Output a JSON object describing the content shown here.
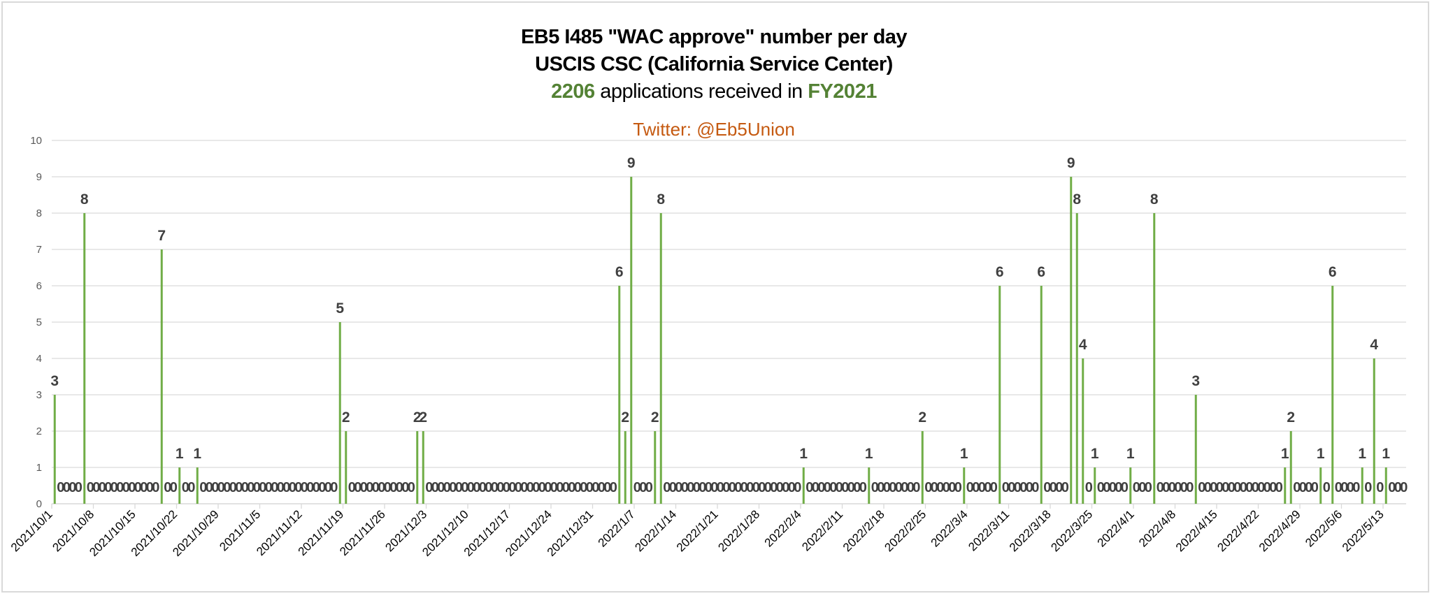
{
  "header": {
    "title": "EB5 I485 \"WAC approve\" number per day",
    "subtitle": "USCIS CSC (California Service Center)",
    "received_count": "2206",
    "received_text": " applications received in ",
    "fiscal_year": "FY2021",
    "credit": "Twitter: @Eb5Union"
  },
  "colors": {
    "bar": "#70ad47",
    "highlight_text": "#548235",
    "credit_text": "#c55a11",
    "label_text": "#404040",
    "gridline": "#d9d9d9"
  },
  "chart_data": {
    "type": "bar",
    "title": "EB5 I485 \"WAC approve\" number per day",
    "subtitle": "USCIS CSC (California Service Center) — 2206 applications received in FY2021",
    "annotation": "Twitter: @Eb5Union",
    "xlabel": "",
    "ylabel": "",
    "ylim": [
      0,
      10
    ],
    "yticks": [
      0,
      1,
      2,
      3,
      4,
      5,
      6,
      7,
      8,
      9,
      10
    ],
    "grid": true,
    "legend": "none",
    "x_range": [
      "2021/10/1",
      "2022/5/16"
    ],
    "x_tick_interval_days": 7,
    "x_tick_labels": [
      "2021/10/1",
      "2021/10/8",
      "2021/10/15",
      "2021/10/22",
      "2021/10/29",
      "2021/11/5",
      "2021/11/12",
      "2021/11/19",
      "2021/11/26",
      "2021/12/3",
      "2021/12/10",
      "2021/12/17",
      "2021/12/24",
      "2021/12/31",
      "2022/1/7",
      "2022/1/14",
      "2022/1/21",
      "2022/1/28",
      "2022/2/4",
      "2022/2/11",
      "2022/2/18",
      "2022/2/25",
      "2022/3/4",
      "2022/3/11",
      "2022/3/18",
      "2022/3/25",
      "2022/4/1",
      "2022/4/8",
      "2022/4/15",
      "2022/4/22",
      "2022/4/29",
      "2022/5/6",
      "2022/5/13"
    ],
    "default_value": 0,
    "nonzero_points": [
      {
        "date": "2021/10/1",
        "value": 3
      },
      {
        "date": "2021/10/6",
        "value": 8
      },
      {
        "date": "2021/10/19",
        "value": 7
      },
      {
        "date": "2021/10/22",
        "value": 1
      },
      {
        "date": "2021/10/25",
        "value": 1
      },
      {
        "date": "2021/11/18",
        "value": 5
      },
      {
        "date": "2021/11/19",
        "value": 2
      },
      {
        "date": "2021/12/1",
        "value": 2
      },
      {
        "date": "2021/12/2",
        "value": 2
      },
      {
        "date": "2022/1/4",
        "value": 6
      },
      {
        "date": "2022/1/5",
        "value": 2
      },
      {
        "date": "2022/1/6",
        "value": 9
      },
      {
        "date": "2022/1/10",
        "value": 2
      },
      {
        "date": "2022/1/11",
        "value": 8
      },
      {
        "date": "2022/2/4",
        "value": 1
      },
      {
        "date": "2022/2/15",
        "value": 1
      },
      {
        "date": "2022/2/24",
        "value": 2
      },
      {
        "date": "2022/3/3",
        "value": 1
      },
      {
        "date": "2022/3/9",
        "value": 6
      },
      {
        "date": "2022/3/16",
        "value": 6
      },
      {
        "date": "2022/3/21",
        "value": 9
      },
      {
        "date": "2022/3/22",
        "value": 8
      },
      {
        "date": "2022/3/23",
        "value": 4
      },
      {
        "date": "2022/3/25",
        "value": 1
      },
      {
        "date": "2022/3/31",
        "value": 1
      },
      {
        "date": "2022/4/4",
        "value": 8
      },
      {
        "date": "2022/4/11",
        "value": 3
      },
      {
        "date": "2022/4/26",
        "value": 1
      },
      {
        "date": "2022/4/27",
        "value": 2
      },
      {
        "date": "2022/5/2",
        "value": 1
      },
      {
        "date": "2022/5/4",
        "value": 6
      },
      {
        "date": "2022/5/9",
        "value": 1
      },
      {
        "date": "2022/5/11",
        "value": 4
      },
      {
        "date": "2022/5/13",
        "value": 1
      }
    ],
    "data_labels": "shown on every day (zeros rendered as '0' along the baseline)"
  }
}
